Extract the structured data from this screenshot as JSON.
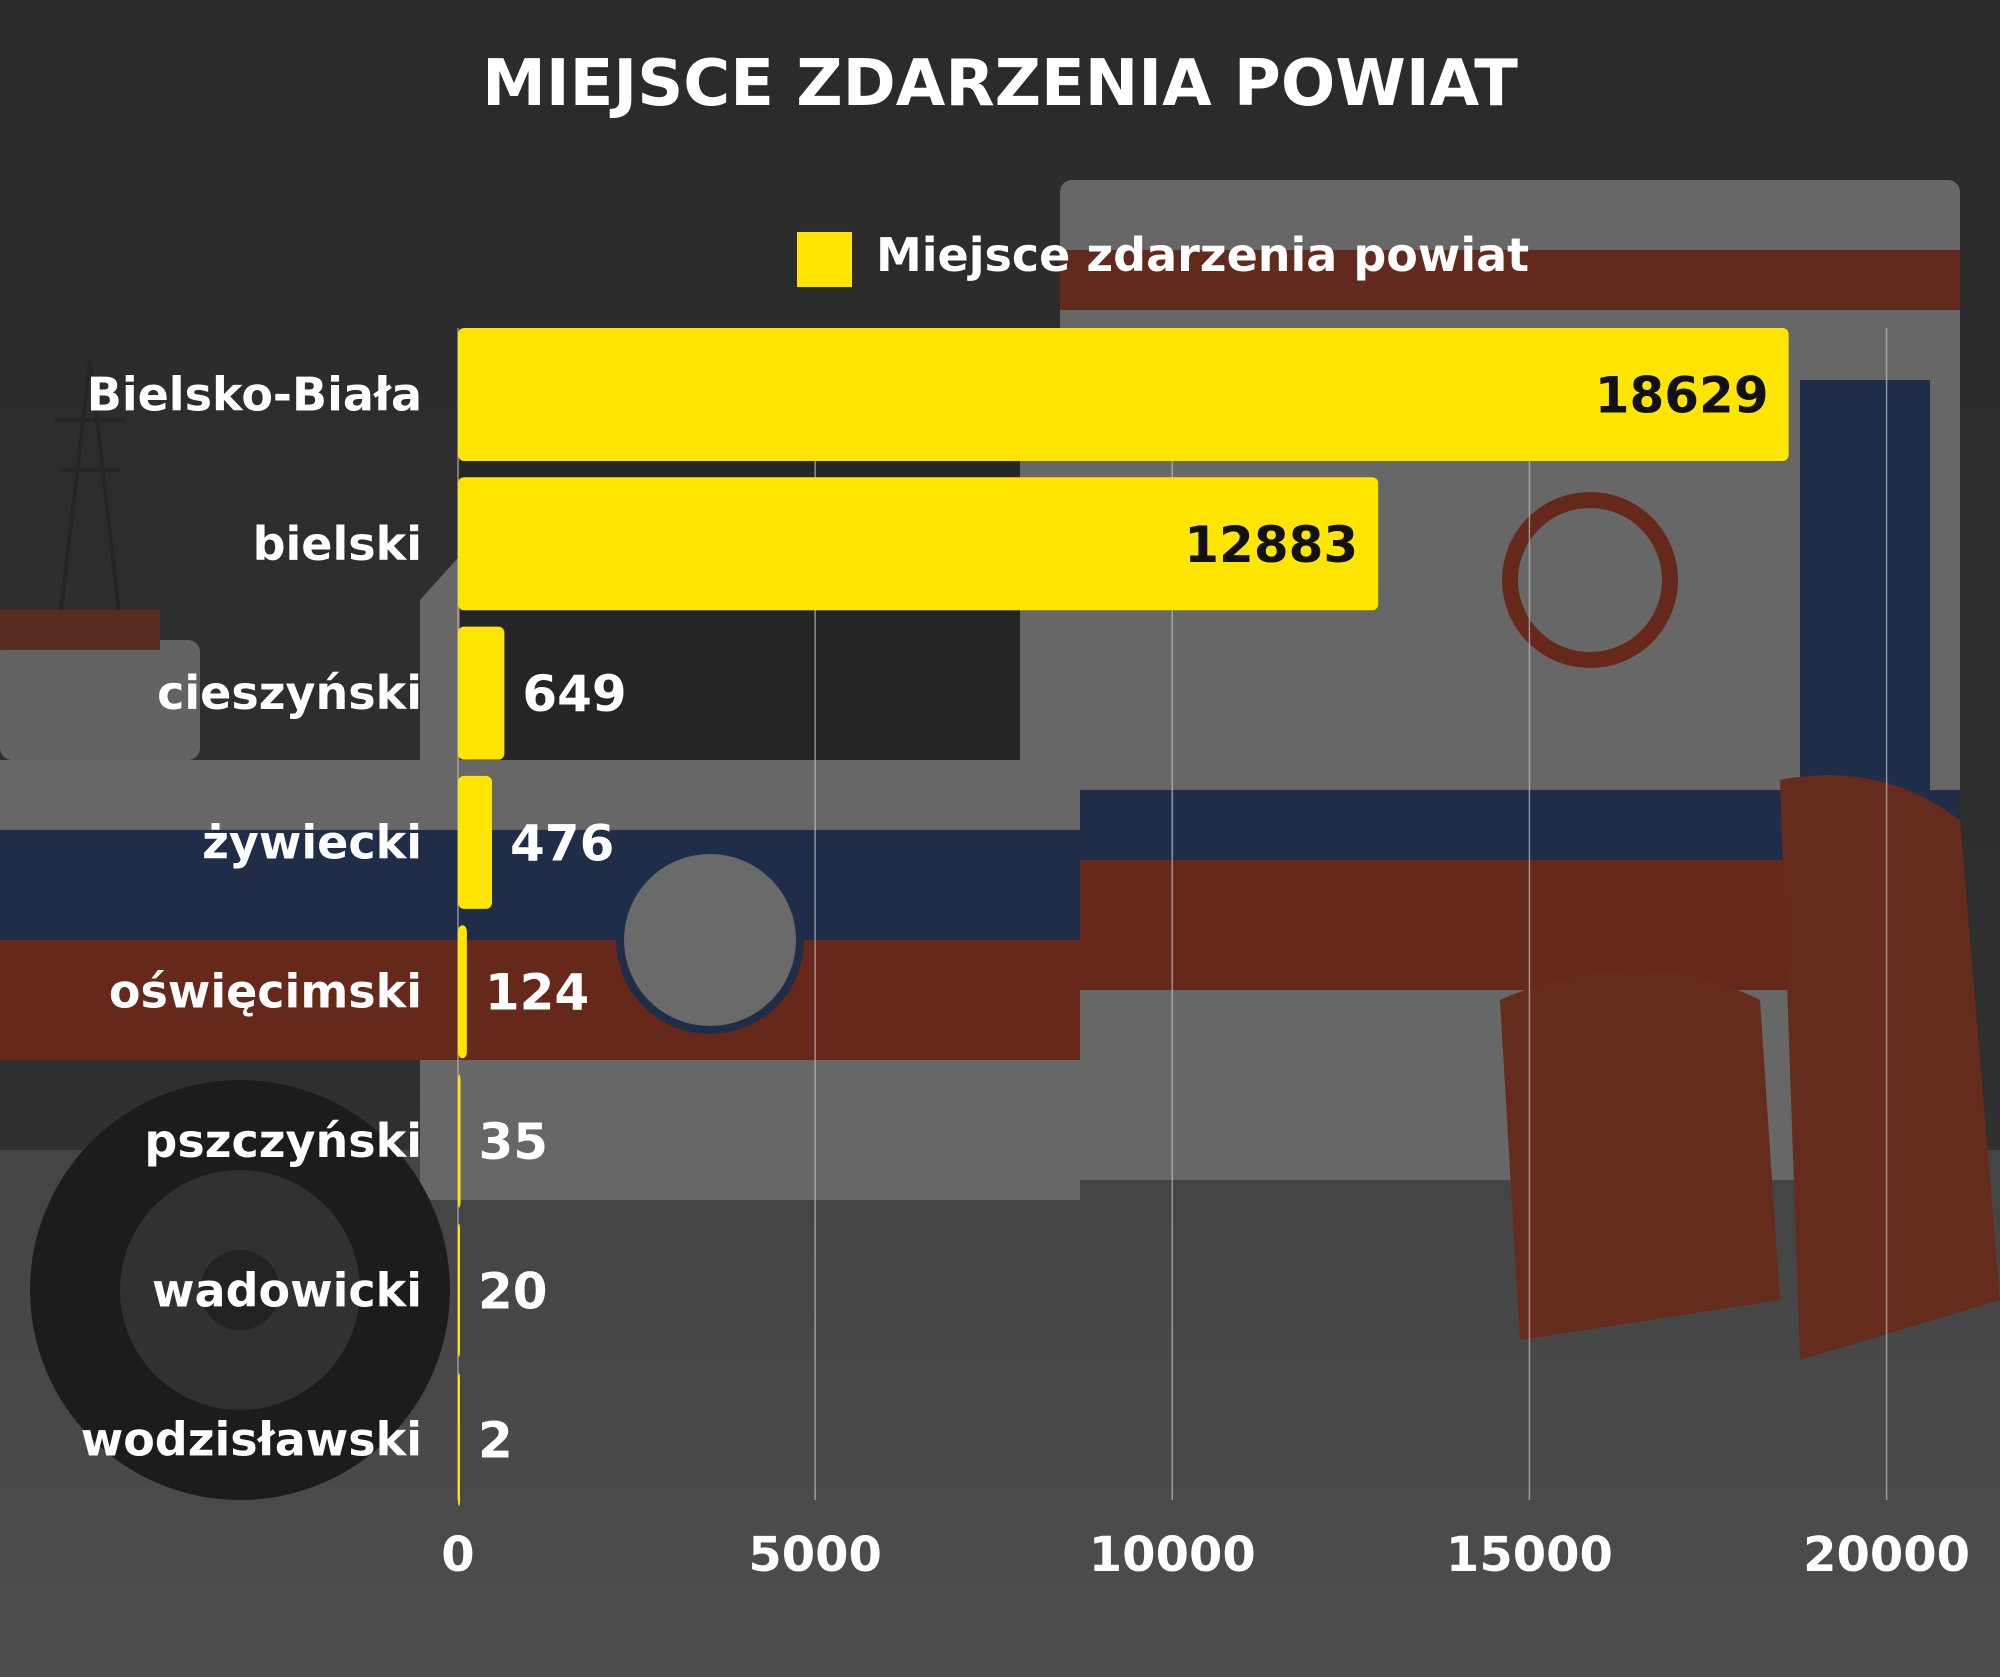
{
  "colors": {
    "bar": "#FFE500",
    "text": "#ffffff",
    "inside_label": "#111111",
    "grid": "#bdbdbd",
    "overlay": "rgba(25,25,25,0.62)"
  },
  "chart_data": {
    "type": "bar",
    "orientation": "horizontal",
    "title": "MIEJSCE ZDARZENIA POWIAT",
    "legend": {
      "label": "Miejsce zdarzenia powiat",
      "placement": "top"
    },
    "categories": [
      "Bielsko-Biała",
      "bielski",
      "cieszyński",
      "żywiecki",
      "oświęcimski",
      "pszczyński",
      "wadowicki",
      "wodzisławski"
    ],
    "series": [
      {
        "name": "Miejsce zdarzenia powiat",
        "values": [
          18629,
          12883,
          649,
          476,
          124,
          35,
          20,
          2
        ]
      }
    ],
    "xlim": [
      0,
      21000
    ],
    "xticks": [
      0,
      5000,
      10000,
      15000,
      20000
    ],
    "grid": true,
    "data_labels": true
  }
}
